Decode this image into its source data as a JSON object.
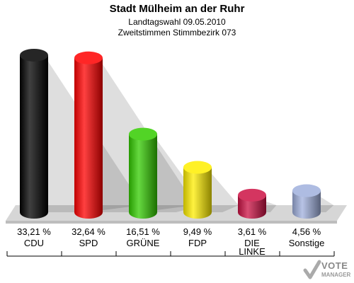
{
  "header": {
    "title": "Stadt Mülheim an der Ruhr",
    "subtitle1": "Landtagswahl 09.05.2010",
    "subtitle2": "Zweitstimmen Stimmbezirk 073"
  },
  "logo": {
    "line1": "VOTE",
    "line2": "MANAGER"
  },
  "chart_data": {
    "type": "bar",
    "title": "Stadt Mülheim an der Ruhr",
    "categories": [
      "CDU",
      "SPD",
      "GRÜNE",
      "FDP",
      "DIE LINKE",
      "Sonstige"
    ],
    "category_lines": [
      [
        "CDU"
      ],
      [
        "SPD"
      ],
      [
        "GRÜNE"
      ],
      [
        "FDP"
      ],
      [
        "DIE",
        "LINKE"
      ],
      [
        "Sonstige"
      ]
    ],
    "values": [
      33.21,
      32.64,
      16.51,
      9.49,
      3.61,
      4.56
    ],
    "value_labels": [
      "33,21 %",
      "32,64 %",
      "16,51 %",
      "9,49 %",
      "3,61 %",
      "4,56 %"
    ],
    "colors": [
      "#000000",
      "#ff0000",
      "#33cc00",
      "#ffee00",
      "#cc1144",
      "#a0b0dd"
    ],
    "ylim": [
      0,
      35
    ],
    "grid": false,
    "legend": "none"
  }
}
